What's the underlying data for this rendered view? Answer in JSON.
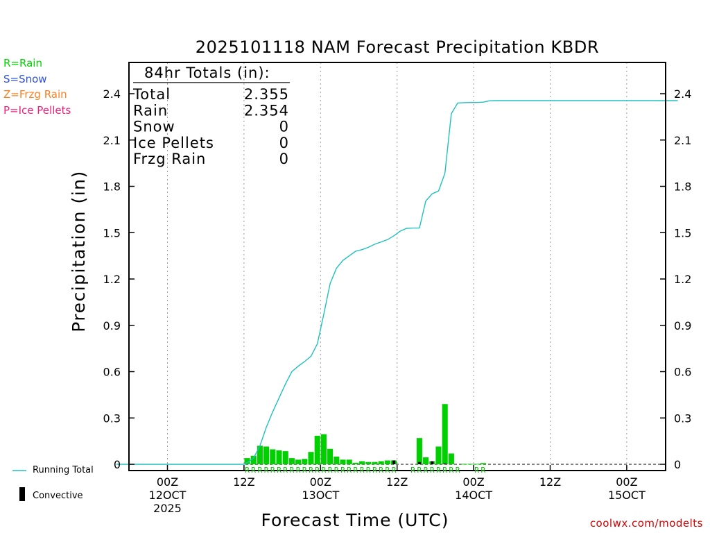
{
  "chart_data": {
    "type": "bar+line",
    "title": "2025101118 NAM Forecast Precipitation KBDR",
    "xlabel": "Forecast Time (UTC)",
    "ylabel": "Precipitation (in)",
    "ylim": [
      0,
      2.55
    ],
    "yticks": [
      0,
      0.3,
      0.6,
      0.9,
      1.2,
      1.5,
      1.8,
      2.1,
      2.4
    ],
    "ytick_labels": [
      "0",
      "0.3",
      "0.6",
      "0.9",
      "1.2",
      "1.5",
      "1.8",
      "2.1",
      "2.4"
    ],
    "x_unit": "forecast hour",
    "xlim": [
      -3,
      87
    ],
    "xticks": [
      {
        "hour": 6,
        "labels": [
          "00Z",
          "12OCT",
          "2025"
        ]
      },
      {
        "hour": 18,
        "labels": [
          "12Z"
        ]
      },
      {
        "hour": 30,
        "labels": [
          "00Z",
          "13OCT"
        ]
      },
      {
        "hour": 42,
        "labels": [
          "12Z"
        ]
      },
      {
        "hour": 54,
        "labels": [
          "00Z",
          "14OCT"
        ]
      },
      {
        "hour": 66,
        "labels": [
          "12Z"
        ]
      },
      {
        "hour": 78,
        "labels": [
          "00Z",
          "15OCT"
        ]
      }
    ],
    "totals_box": {
      "heading": "84hr Totals (in):",
      "rows": [
        {
          "label": "Total",
          "value": "2.355"
        },
        {
          "label": "Rain",
          "value": "2.354"
        },
        {
          "label": "Snow",
          "value": "0"
        },
        {
          "label": "Ice Pellets",
          "value": "0"
        },
        {
          "label": "Frzg Rain",
          "value": "0"
        }
      ]
    },
    "series": [
      {
        "name": "Running Total",
        "type": "line",
        "color": "#20c0c0",
        "points": [
          [
            -2,
            0
          ],
          [
            18,
            0
          ],
          [
            18.5,
            0.01
          ],
          [
            19.5,
            0.04
          ],
          [
            20.5,
            0.12
          ],
          [
            21.5,
            0.24
          ],
          [
            22.5,
            0.34
          ],
          [
            23.5,
            0.43
          ],
          [
            24.5,
            0.52
          ],
          [
            25.5,
            0.6
          ],
          [
            26.5,
            0.635
          ],
          [
            27.5,
            0.665
          ],
          [
            28.5,
            0.7
          ],
          [
            29.5,
            0.78
          ],
          [
            30.5,
            0.97
          ],
          [
            31.5,
            1.17
          ],
          [
            32.5,
            1.27
          ],
          [
            33.5,
            1.32
          ],
          [
            34.5,
            1.35
          ],
          [
            35.5,
            1.38
          ],
          [
            36.5,
            1.39
          ],
          [
            37.5,
            1.405
          ],
          [
            38.5,
            1.425
          ],
          [
            39.5,
            1.44
          ],
          [
            40.5,
            1.455
          ],
          [
            41.5,
            1.48
          ],
          [
            42.5,
            1.51
          ],
          [
            43.5,
            1.528
          ],
          [
            44.5,
            1.53
          ],
          [
            45.5,
            1.53
          ],
          [
            46.5,
            1.705
          ],
          [
            47.5,
            1.752
          ],
          [
            48.5,
            1.77
          ],
          [
            49.5,
            1.885
          ],
          [
            50.5,
            2.27
          ],
          [
            51.5,
            2.34
          ],
          [
            52.5,
            2.342
          ],
          [
            53.5,
            2.343
          ],
          [
            54.5,
            2.343
          ],
          [
            55.5,
            2.345
          ],
          [
            56.5,
            2.354
          ],
          [
            57.5,
            2.355
          ],
          [
            86,
            2.355
          ]
        ]
      },
      {
        "name": "Hourly Precipitation",
        "type": "bar",
        "color": "#00d000",
        "bar_width_hours": 0.75,
        "bars": [
          [
            18.5,
            0.04
          ],
          [
            19.5,
            0.055
          ],
          [
            20.5,
            0.12
          ],
          [
            21.5,
            0.115
          ],
          [
            22.5,
            0.097
          ],
          [
            23.5,
            0.09
          ],
          [
            24.5,
            0.085
          ],
          [
            25.5,
            0.04
          ],
          [
            26.5,
            0.03
          ],
          [
            27.5,
            0.035
          ],
          [
            28.5,
            0.08
          ],
          [
            29.5,
            0.185
          ],
          [
            30.5,
            0.195
          ],
          [
            31.5,
            0.1
          ],
          [
            32.5,
            0.05
          ],
          [
            33.5,
            0.03
          ],
          [
            34.5,
            0.03
          ],
          [
            35.5,
            0.01
          ],
          [
            36.5,
            0.02
          ],
          [
            37.5,
            0.015
          ],
          [
            38.5,
            0.015
          ],
          [
            39.5,
            0.02
          ],
          [
            40.5,
            0.025
          ],
          [
            41.5,
            0.025
          ],
          [
            45.5,
            0.17
          ],
          [
            46.5,
            0.045
          ],
          [
            47.5,
            0.02
          ],
          [
            48.5,
            0.115
          ],
          [
            49.5,
            0.39
          ],
          [
            50.5,
            0.07
          ],
          [
            52.5,
            0.003
          ],
          [
            53.5,
            0.003
          ],
          [
            54.5,
            0.003
          ],
          [
            55.5,
            0.008
          ]
        ]
      },
      {
        "name": "Convective",
        "type": "bar",
        "color": "#000000",
        "bars": [
          [
            41.5,
            0.025
          ],
          [
            45.5,
            0.015
          ],
          [
            47.5,
            0.02
          ],
          [
            49.5,
            0.005
          ]
        ]
      }
    ],
    "ptype_markers": {
      "symbol": "R",
      "hours": [
        18.5,
        19.5,
        20.5,
        21.5,
        22.5,
        23.5,
        24.5,
        25.5,
        26.5,
        27.5,
        28.5,
        29.5,
        30.5,
        31.5,
        32.5,
        33.5,
        34.5,
        35.5,
        36.5,
        37.5,
        38.5,
        39.5,
        40.5,
        41.5,
        44.5,
        45.5,
        46.5,
        47.5,
        48.5,
        49.5,
        50.5,
        51.5,
        54.5,
        55.5
      ]
    },
    "ptype_legend": [
      {
        "text": "R=Rain",
        "color": "#00d000"
      },
      {
        "text": "S=Snow",
        "color": "#3050e0"
      },
      {
        "text": "Z=Frzg Rain",
        "color": "#ff8020"
      },
      {
        "text": "P=Ice Pellets",
        "color": "#f0207a"
      }
    ],
    "line_legend": "Running Total",
    "convective_legend": "Convective"
  },
  "credit": "coolwx.com/modelts"
}
